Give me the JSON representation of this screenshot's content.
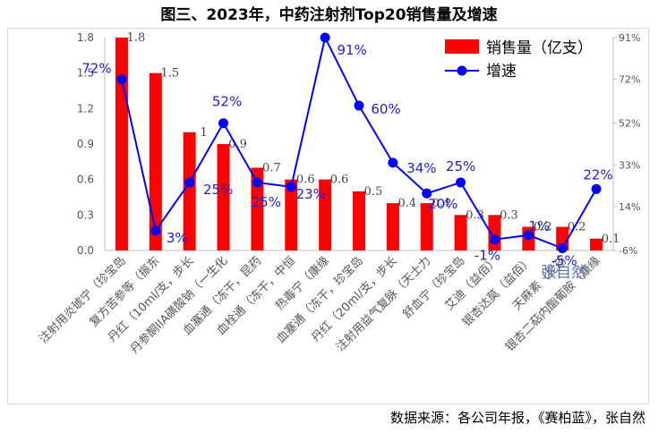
{
  "title": "图三、2023年，中药注射剂Top20销售量及增速",
  "source": "数据来源：各公司年报，《赛柏蓝》，张自然",
  "watermark": "张自然",
  "colors": {
    "bar": "#ff0000",
    "line": "#0000ff",
    "label": "#1f1fd6"
  },
  "chart_data": {
    "type": "bar+line",
    "title": "图三、2023年，中药注射剂Top20销售量及增速",
    "categories": [
      "注射用炎琥宁（珍宝岛",
      "复方苦参等（振东",
      "丹红（10ml/支，步长",
      "丹参酮IIA磺酸钠（一生化",
      "血塞通（冻干，昆药",
      "血栓通（冻干，中恒",
      "热毒宁（康缘",
      "血塞通（冻干，珍宝岛",
      "丹红（20ml/支，步长",
      "注射用益气复脉（天士力",
      "舒血宁（珍宝岛",
      "艾迪（益佰）",
      "银杏达莫（益佰）",
      "天麻素（昆药",
      "银杏二萜内酯葡胺（康缘"
    ],
    "series": [
      {
        "name": "销售量（亿支）",
        "type": "bar",
        "axis": "left",
        "values": [
          1.8,
          1.5,
          1.0,
          0.9,
          0.7,
          0.6,
          0.6,
          0.5,
          0.4,
          0.4,
          0.3,
          0.3,
          0.2,
          0.2,
          0.1
        ],
        "value_labels": [
          "1.8",
          "1.5",
          "1",
          "0.9",
          "0.7",
          "0.6",
          "0.6",
          "0.5",
          "0.4",
          "0.4",
          "0.3",
          "0.3",
          "0.2",
          "0.2",
          "0.1"
        ]
      },
      {
        "name": "增速",
        "type": "line",
        "axis": "right",
        "values": [
          72,
          3,
          25,
          52,
          25,
          23,
          91,
          60,
          34,
          20,
          25,
          -1,
          1,
          -5,
          22
        ],
        "value_labels": [
          "72%",
          "3%",
          "25%",
          "52%",
          "25%",
          "23%",
          "91%",
          "60%",
          "34%",
          "20%",
          "25%",
          "-1%",
          "1%",
          "-5%",
          "22%"
        ]
      }
    ],
    "y_left": {
      "min": 0,
      "max": 1.8,
      "ticks": [
        "0.0",
        "0.3",
        "0.6",
        "0.9",
        "1.2",
        "1.5",
        "1.8"
      ]
    },
    "y_right": {
      "min": -6,
      "max": 91,
      "ticks": [
        "-6%",
        "14%",
        "33%",
        "52%",
        "72%",
        "91%"
      ]
    },
    "legend": {
      "position": "top-right",
      "entries": [
        "销售量（亿支）",
        "增速"
      ]
    }
  }
}
